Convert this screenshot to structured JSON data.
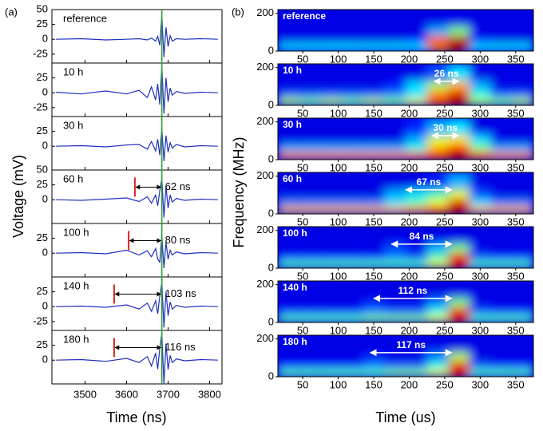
{
  "chart_data": [
    {
      "type": "line",
      "panel_label": "(a)",
      "xlabel": "Time (ns)",
      "ylabel": "Voltage (mV)",
      "xlim": [
        3420,
        3830
      ],
      "xticks": [
        3500,
        3600,
        3700,
        3800
      ],
      "color": "#1f2fbf",
      "reference_x": 3685,
      "reference_color": "#2ca02c",
      "marker_color": "#e02020",
      "x": [
        3430,
        3490,
        3550,
        3600,
        3630,
        3650,
        3660,
        3670,
        3675,
        3680,
        3685,
        3690,
        3695,
        3700,
        3705,
        3710,
        3720,
        3740,
        3780,
        3820
      ],
      "panels": [
        {
          "label": "reference",
          "ylim": [
            -40,
            50
          ],
          "yticks": [
            -25,
            0,
            25,
            50
          ],
          "values": [
            0,
            1,
            -1,
            0,
            1,
            -1,
            2,
            -3,
            5,
            -10,
            40,
            -30,
            20,
            -12,
            6,
            -3,
            1,
            0,
            1,
            0
          ]
        },
        {
          "label": "10 h",
          "ylim": [
            -40,
            50
          ],
          "yticks": [
            -25,
            0,
            25
          ],
          "values": [
            1,
            -2,
            3,
            -2,
            4,
            -8,
            10,
            -12,
            15,
            -20,
            45,
            -35,
            25,
            -15,
            8,
            -4,
            2,
            -1,
            1,
            0
          ]
        },
        {
          "label": "30 h",
          "ylim": [
            -40,
            50
          ],
          "yticks": [
            0,
            25
          ],
          "values": [
            0,
            1,
            -1,
            2,
            3,
            -5,
            8,
            -8,
            12,
            -15,
            30,
            -25,
            18,
            -10,
            6,
            -3,
            3,
            -1,
            1,
            0
          ]
        },
        {
          "label": "60 h",
          "ylim": [
            -40,
            50
          ],
          "yticks": [
            0,
            25,
            50
          ],
          "values": [
            0,
            -1,
            1,
            3,
            -3,
            5,
            -6,
            8,
            -10,
            15,
            35,
            -30,
            22,
            -14,
            8,
            -4,
            2,
            -1,
            1,
            0
          ],
          "onset": 3620,
          "delay_label": "62 ns"
        },
        {
          "label": "100 h",
          "ylim": [
            -40,
            50
          ],
          "yticks": [
            0,
            25
          ],
          "values": [
            0,
            1,
            -1,
            5,
            -3,
            4,
            -6,
            8,
            -10,
            -15,
            30,
            -25,
            18,
            -10,
            5,
            -3,
            2,
            -1,
            1,
            0
          ],
          "onset": 3605,
          "delay_label": "80 ns"
        },
        {
          "label": "140 h",
          "ylim": [
            -40,
            50
          ],
          "yticks": [
            -25,
            0,
            25
          ],
          "values": [
            0,
            1,
            -1,
            3,
            -4,
            6,
            -8,
            10,
            -12,
            18,
            40,
            -35,
            25,
            -15,
            8,
            -4,
            2,
            -1,
            1,
            0
          ],
          "onset": 3570,
          "delay_label": "103 ns"
        },
        {
          "label": "180 h",
          "ylim": [
            -40,
            50
          ],
          "yticks": [
            0,
            25
          ],
          "values": [
            0,
            1,
            -2,
            3,
            -4,
            6,
            -10,
            12,
            -15,
            20,
            45,
            -40,
            28,
            -16,
            8,
            -4,
            2,
            -1,
            1,
            0
          ],
          "onset": 3570,
          "delay_label": "116 ns"
        }
      ]
    },
    {
      "type": "heatmap",
      "panel_label": "(b)",
      "xlabel": "Time (us)",
      "ylabel": "Frequency (MHz)",
      "xlim": [
        15,
        375
      ],
      "ylim": [
        0,
        220
      ],
      "xticks": [
        50,
        100,
        150,
        200,
        250,
        300,
        350
      ],
      "yticks": [
        0,
        200
      ],
      "x_bins": [
        15,
        45,
        75,
        105,
        135,
        165,
        195,
        225,
        255,
        285,
        315,
        345,
        375
      ],
      "y_bins": [
        0,
        40,
        80,
        130,
        220
      ],
      "panels": [
        {
          "label": "reference",
          "values": [
            [
              0.35,
              0.35,
              0.35,
              0.35,
              0.35,
              0.35,
              0.35,
              0.75,
              0.95,
              0.35,
              0.35,
              0.35
            ],
            [
              0.1,
              0.1,
              0.1,
              0.1,
              0.1,
              0.1,
              0.15,
              0.8,
              0.95,
              0.15,
              0.1,
              0.1
            ],
            [
              0.1,
              0.1,
              0.1,
              0.1,
              0.1,
              0.1,
              0.1,
              0.3,
              0.5,
              0.1,
              0.1,
              0.1
            ],
            [
              0.1,
              0.1,
              0.1,
              0.1,
              0.1,
              0.1,
              0.1,
              0.1,
              0.1,
              0.1,
              0.1,
              0.1
            ]
          ]
        },
        {
          "label": "10 h",
          "arrow": [
            235,
            270
          ],
          "delay_label": "26 ns",
          "values": [
            [
              0.55,
              0.5,
              0.55,
              0.5,
              0.55,
              0.5,
              0.6,
              0.8,
              0.95,
              0.55,
              0.5,
              0.55
            ],
            [
              0.2,
              0.2,
              0.2,
              0.2,
              0.2,
              0.25,
              0.35,
              0.75,
              0.9,
              0.4,
              0.2,
              0.2
            ],
            [
              0.1,
              0.1,
              0.1,
              0.1,
              0.1,
              0.15,
              0.35,
              0.55,
              0.7,
              0.3,
              0.1,
              0.1
            ],
            [
              0.1,
              0.1,
              0.1,
              0.1,
              0.1,
              0.1,
              0.1,
              0.2,
              0.35,
              0.1,
              0.1,
              0.1
            ]
          ]
        },
        {
          "label": "30 h",
          "arrow": [
            232,
            270
          ],
          "delay_label": "30 ns",
          "values": [
            [
              0.75,
              0.75,
              0.75,
              0.75,
              0.75,
              0.75,
              0.8,
              0.85,
              0.95,
              0.8,
              0.75,
              0.75
            ],
            [
              0.3,
              0.3,
              0.3,
              0.3,
              0.3,
              0.3,
              0.4,
              0.7,
              0.85,
              0.5,
              0.3,
              0.3
            ],
            [
              0.1,
              0.1,
              0.1,
              0.1,
              0.1,
              0.1,
              0.3,
              0.6,
              0.65,
              0.35,
              0.1,
              0.1
            ],
            [
              0.1,
              0.1,
              0.1,
              0.1,
              0.1,
              0.1,
              0.15,
              0.3,
              0.35,
              0.1,
              0.1,
              0.1
            ]
          ]
        },
        {
          "label": "60 h",
          "arrow": [
            195,
            260
          ],
          "delay_label": "67 ns",
          "values": [
            [
              0.7,
              0.7,
              0.7,
              0.7,
              0.7,
              0.7,
              0.75,
              0.8,
              0.95,
              0.7,
              0.7,
              0.7
            ],
            [
              0.25,
              0.25,
              0.25,
              0.25,
              0.25,
              0.35,
              0.45,
              0.6,
              0.9,
              0.35,
              0.25,
              0.25
            ],
            [
              0.1,
              0.1,
              0.1,
              0.1,
              0.1,
              0.3,
              0.35,
              0.45,
              0.6,
              0.2,
              0.1,
              0.1
            ],
            [
              0.1,
              0.1,
              0.1,
              0.1,
              0.1,
              0.1,
              0.1,
              0.15,
              0.3,
              0.1,
              0.1,
              0.1
            ]
          ]
        },
        {
          "label": "100 h",
          "arrow": [
            175,
            260
          ],
          "delay_label": "84 ns",
          "values": [
            [
              0.45,
              0.45,
              0.45,
              0.45,
              0.45,
              0.45,
              0.45,
              0.6,
              0.9,
              0.45,
              0.45,
              0.45
            ],
            [
              0.15,
              0.15,
              0.15,
              0.15,
              0.15,
              0.25,
              0.2,
              0.45,
              0.9,
              0.2,
              0.15,
              0.15
            ],
            [
              0.1,
              0.1,
              0.1,
              0.1,
              0.1,
              0.2,
              0.1,
              0.3,
              0.5,
              0.1,
              0.1,
              0.1
            ],
            [
              0.1,
              0.1,
              0.1,
              0.1,
              0.1,
              0.1,
              0.1,
              0.1,
              0.1,
              0.1,
              0.1,
              0.1
            ]
          ]
        },
        {
          "label": "140 h",
          "arrow": [
            150,
            260
          ],
          "delay_label": "112 ns",
          "values": [
            [
              0.45,
              0.45,
              0.45,
              0.45,
              0.5,
              0.5,
              0.5,
              0.6,
              0.9,
              0.45,
              0.45,
              0.45
            ],
            [
              0.15,
              0.15,
              0.15,
              0.15,
              0.25,
              0.2,
              0.2,
              0.4,
              0.9,
              0.2,
              0.15,
              0.15
            ],
            [
              0.1,
              0.1,
              0.1,
              0.1,
              0.15,
              0.1,
              0.1,
              0.25,
              0.5,
              0.1,
              0.1,
              0.1
            ],
            [
              0.1,
              0.1,
              0.1,
              0.1,
              0.1,
              0.1,
              0.1,
              0.1,
              0.1,
              0.1,
              0.1,
              0.1
            ]
          ]
        },
        {
          "label": "180 h",
          "arrow": [
            145,
            260
          ],
          "delay_label": "117 ns",
          "values": [
            [
              0.45,
              0.45,
              0.45,
              0.45,
              0.45,
              0.5,
              0.5,
              0.6,
              0.9,
              0.45,
              0.45,
              0.45
            ],
            [
              0.15,
              0.15,
              0.15,
              0.15,
              0.25,
              0.2,
              0.2,
              0.4,
              0.9,
              0.2,
              0.15,
              0.15
            ],
            [
              0.1,
              0.1,
              0.1,
              0.1,
              0.15,
              0.1,
              0.1,
              0.25,
              0.55,
              0.1,
              0.1,
              0.1
            ],
            [
              0.1,
              0.1,
              0.1,
              0.1,
              0.1,
              0.1,
              0.1,
              0.1,
              0.1,
              0.1,
              0.1,
              0.1
            ]
          ]
        }
      ]
    }
  ]
}
